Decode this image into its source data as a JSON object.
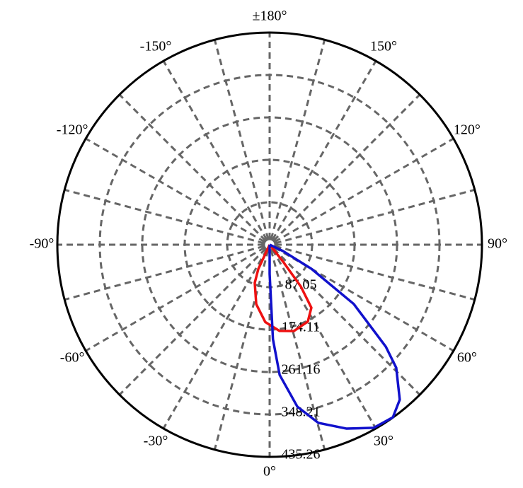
{
  "chart_data": {
    "type": "polar",
    "thetaticks": [
      {
        "value": 0,
        "label": "0°"
      },
      {
        "value": 15,
        "label": null
      },
      {
        "value": 30,
        "label": "30°"
      },
      {
        "value": 45,
        "label": null
      },
      {
        "value": 60,
        "label": "60°"
      },
      {
        "value": 75,
        "label": null
      },
      {
        "value": 90,
        "label": "90°"
      },
      {
        "value": 105,
        "label": null
      },
      {
        "value": 120,
        "label": "120°"
      },
      {
        "value": 135,
        "label": null
      },
      {
        "value": 150,
        "label": "150°"
      },
      {
        "value": 165,
        "label": null
      },
      {
        "value": 180,
        "label": "±180°"
      },
      {
        "value": -165,
        "label": null
      },
      {
        "value": -150,
        "label": "-150°"
      },
      {
        "value": -135,
        "label": null
      },
      {
        "value": -120,
        "label": "-120°"
      },
      {
        "value": -105,
        "label": null
      },
      {
        "value": -90,
        "label": "-90°"
      },
      {
        "value": -75,
        "label": null
      },
      {
        "value": -60,
        "label": "-60°"
      },
      {
        "value": -45,
        "label": null
      },
      {
        "value": -30,
        "label": "-30°"
      },
      {
        "value": -15,
        "label": null
      }
    ],
    "rlim": [
      0,
      435.26
    ],
    "rticks": [
      87.05,
      174.11,
      261.16,
      348.21,
      435.26
    ],
    "grid": true,
    "series": [
      {
        "color": "#ee1111",
        "theta": [
          -30,
          -25,
          -21.3,
          -12.7,
          -3.2,
          6.5,
          15.6,
          26.4,
          33.5,
          36.7,
          38.4,
          40
        ],
        "values": [
          0,
          55,
          84,
          125,
          159,
          178,
          184,
          176,
          155,
          107,
          44,
          0
        ]
      },
      {
        "color": "#1111cc",
        "theta": [
          -2,
          0,
          2,
          4.4,
          9.7,
          15.3,
          22.7,
          29.6,
          35.5,
          40,
          45.8,
          48.7,
          54.8,
          60,
          64.6,
          70
        ],
        "values": [
          0,
          60,
          194,
          268,
          337,
          379,
          409,
          432,
          435,
          415,
          362,
          317,
          211,
          99,
          30,
          0
        ]
      }
    ]
  }
}
